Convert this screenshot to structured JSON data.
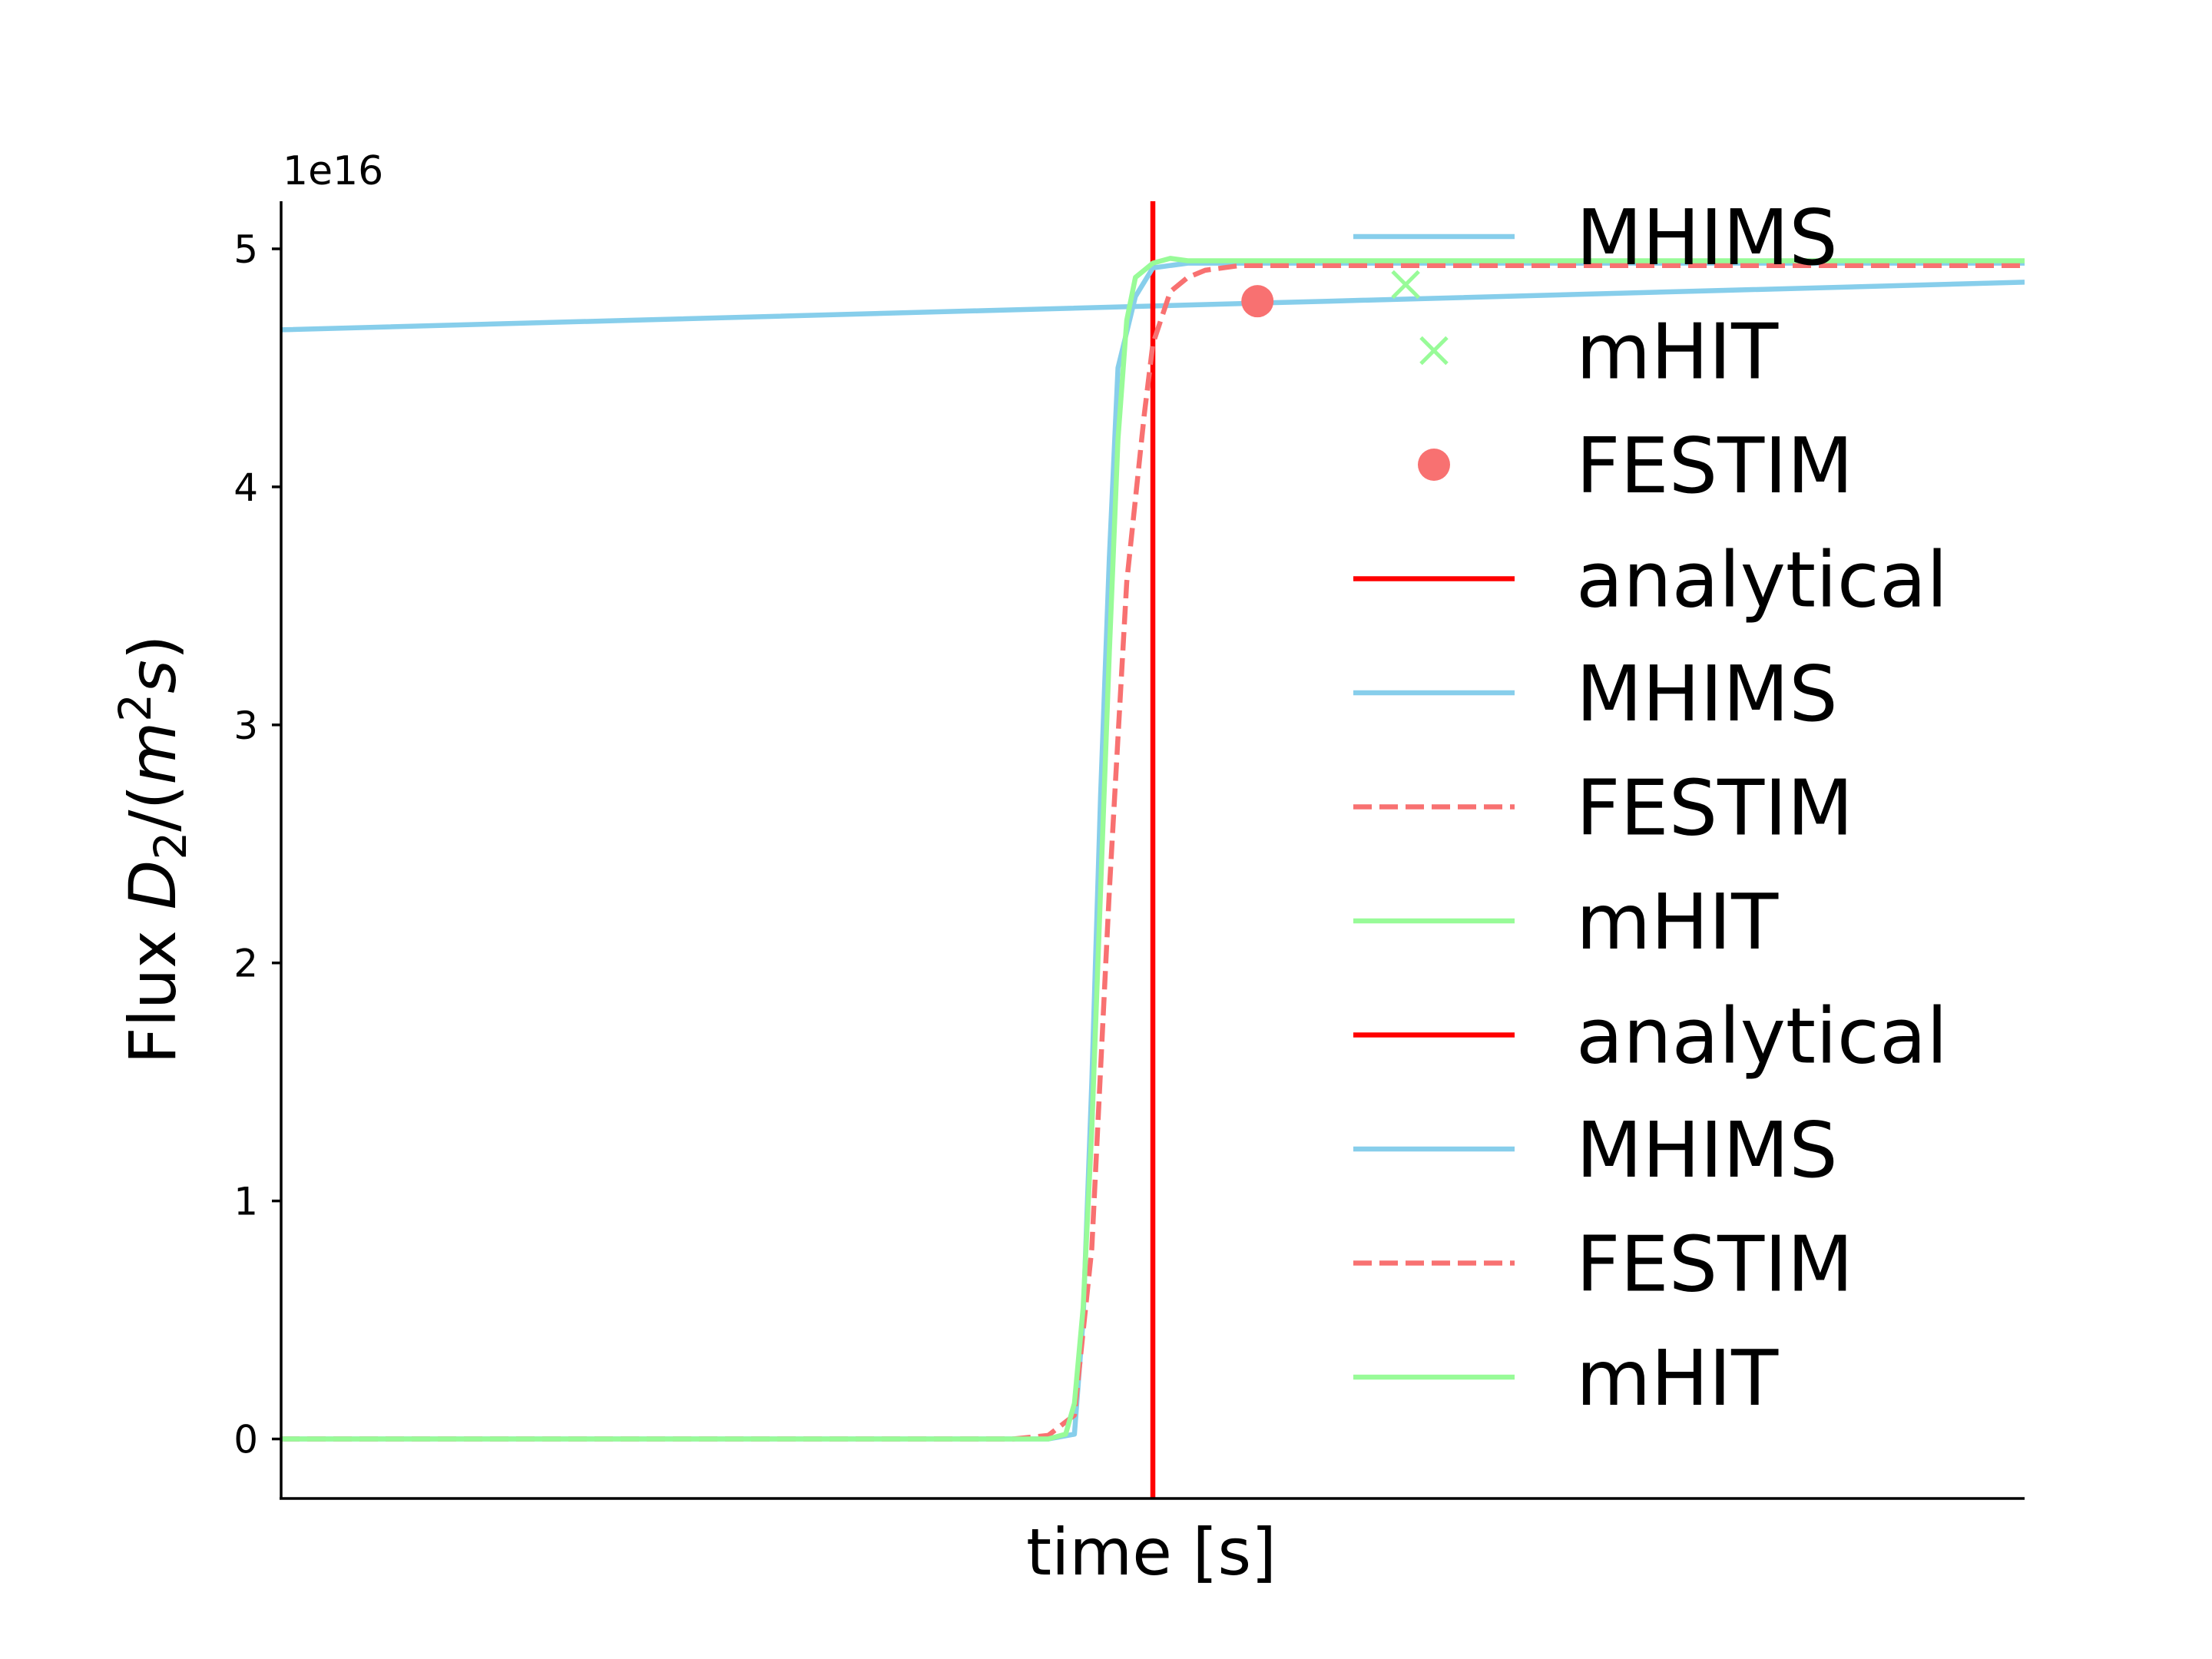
{
  "chart_data": {
    "type": "line",
    "xlabel": "time [s]",
    "ylabel_parts": {
      "main": "Flux ",
      "D": "D",
      "sub2": "2",
      "slash": "/(",
      "m": "m",
      "sup2": "2",
      "s": "s",
      "close": ")"
    },
    "y_offset_text": "1e16",
    "ylim": [
      -2500000000000000.0,
      5.2e+16
    ],
    "xlim": [
      0,
      1
    ],
    "y_ticks": [
      0,
      1e+16,
      2e+16,
      3e+16,
      4e+16,
      5e+16
    ],
    "y_tick_labels": [
      "0",
      "1",
      "2",
      "3",
      "4",
      "5"
    ],
    "x_ticks_visible": false,
    "grid": false,
    "legend_position": "upper right, inside plot, no frame",
    "series": [
      {
        "name": "MHIMS",
        "style": "solid",
        "color": "#87CEEB",
        "x": [
          0.0,
          0.2,
          0.4,
          0.6,
          0.8,
          1.0
        ],
        "y": [
          4.66e+16,
          4.7e+16,
          4.74e+16,
          4.78e+16,
          4.82e+16,
          4.86e+16
        ]
      },
      {
        "name": "mHIT",
        "style": "marker-x",
        "color": "#98FB98",
        "x": [
          0.645
        ],
        "y": [
          4.85e+16
        ]
      },
      {
        "name": "FESTIM",
        "style": "marker-dot",
        "color": "#F87171",
        "x": [
          0.56
        ],
        "y": [
          4.78e+16
        ]
      },
      {
        "name": "analytical",
        "style": "vline",
        "color": "#FF0000",
        "x": [
          0.5
        ]
      },
      {
        "name": "MHIMS",
        "style": "solid",
        "color": "#87CEEB",
        "x": [
          0.0,
          0.44,
          0.455,
          0.46,
          0.465,
          0.47,
          0.475,
          0.48,
          0.49,
          0.5,
          0.52,
          0.54,
          0.6,
          1.0
        ],
        "y": [
          0,
          0,
          200000000000000.0,
          5000000000000000.0,
          1.5e+16,
          2.7e+16,
          3.7e+16,
          4.5e+16,
          4.8e+16,
          4.92e+16,
          4.94e+16,
          4.94e+16,
          4.94e+16,
          4.94e+16
        ]
      },
      {
        "name": "FESTIM",
        "style": "dashed",
        "color": "#F87171",
        "x": [
          0.0,
          0.42,
          0.44,
          0.455,
          0.465,
          0.475,
          0.485,
          0.495,
          0.5,
          0.51,
          0.52,
          0.53,
          0.55,
          0.6,
          1.0
        ],
        "y": [
          0,
          0,
          150000000000000.0,
          1000000000000000.0,
          8000000000000000.0,
          2.3e+16,
          3.6e+16,
          4.3e+16,
          4.6e+16,
          4.82e+16,
          4.88e+16,
          4.91e+16,
          4.93e+16,
          4.93e+16,
          4.93e+16
        ]
      },
      {
        "name": "mHIT",
        "style": "solid",
        "color": "#98FB98",
        "x": [
          0.0,
          0.44,
          0.45,
          0.455,
          0.46,
          0.465,
          0.47,
          0.475,
          0.48,
          0.485,
          0.49,
          0.5,
          0.51,
          0.52,
          0.53,
          0.6,
          1.0
        ],
        "y": [
          0,
          0,
          200000000000000.0,
          1500000000000000.0,
          5500000000000000.0,
          1.3e+16,
          2.3e+16,
          3.3e+16,
          4.2e+16,
          4.7e+16,
          4.88e+16,
          4.94e+16,
          4.96e+16,
          4.95e+16,
          4.95e+16,
          4.95e+16,
          4.95e+16
        ]
      },
      {
        "name": "analytical",
        "style": "vline",
        "color": "#FF0000",
        "x": [
          0.5
        ]
      },
      {
        "name": "MHIMS",
        "style": "solid",
        "color": "#87CEEB",
        "x": [
          0.0,
          0.44,
          0.455,
          0.46,
          0.465,
          0.47,
          0.475,
          0.48,
          0.49,
          0.5,
          0.52,
          1.0
        ],
        "y": [
          0,
          0,
          200000000000000.0,
          5000000000000000.0,
          1.5e+16,
          2.7e+16,
          3.7e+16,
          4.5e+16,
          4.8e+16,
          4.92e+16,
          4.94e+16,
          4.94e+16
        ]
      },
      {
        "name": "FESTIM",
        "style": "dashed",
        "color": "#F87171",
        "x": [
          0.0,
          0.42,
          0.44,
          0.455,
          0.465,
          0.475,
          0.485,
          0.495,
          0.5,
          0.51,
          0.52,
          0.53,
          0.55,
          1.0
        ],
        "y": [
          0,
          0,
          150000000000000.0,
          1000000000000000.0,
          8000000000000000.0,
          2.3e+16,
          3.6e+16,
          4.3e+16,
          4.6e+16,
          4.82e+16,
          4.88e+16,
          4.91e+16,
          4.93e+16,
          4.93e+16
        ]
      },
      {
        "name": "mHIT",
        "style": "solid",
        "color": "#98FB98",
        "x": [
          0.0,
          0.44,
          0.45,
          0.455,
          0.46,
          0.465,
          0.47,
          0.475,
          0.48,
          0.485,
          0.49,
          0.5,
          0.51,
          0.52,
          1.0
        ],
        "y": [
          0,
          0,
          200000000000000.0,
          1500000000000000.0,
          5500000000000000.0,
          1.3e+16,
          2.3e+16,
          3.3e+16,
          4.2e+16,
          4.7e+16,
          4.88e+16,
          4.94e+16,
          4.96e+16,
          4.95e+16,
          4.95e+16
        ]
      }
    ]
  }
}
